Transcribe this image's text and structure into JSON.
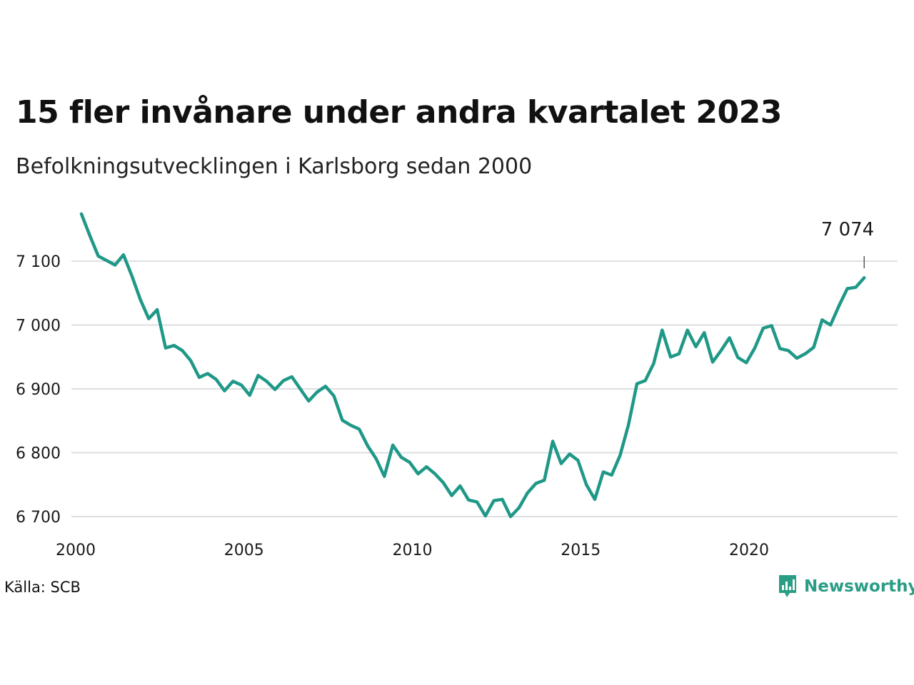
{
  "header": {
    "title": "15 fler invånare under andra kvartalet 2023",
    "subtitle": "Befolkningsutvecklingen i Karlsborg sedan 2000"
  },
  "footer": {
    "source": "Källa: SCB",
    "brand": "Newsworthy"
  },
  "colors": {
    "line": "#1f9887",
    "grid": "#dedfe3",
    "brand": "#2a9d85"
  },
  "chart_data": {
    "type": "line",
    "title": "15 fler invånare under andra kvartalet 2023",
    "subtitle": "Befolkningsutvecklingen i Karlsborg sedan 2000",
    "xlabel": "",
    "ylabel": "",
    "x_ticks": [
      "2000",
      "2005",
      "2010",
      "2015",
      "2020"
    ],
    "y_ticks": [
      "6 700",
      "6 800",
      "6 900",
      "7 000",
      "7 100"
    ],
    "y_tick_values": [
      6700,
      6800,
      6900,
      7000,
      7100
    ],
    "ylim": [
      6680,
      7185
    ],
    "xlim": [
      2000.0,
      2023.5
    ],
    "grid": true,
    "annotation": {
      "label": "7 074",
      "x": 2023.25,
      "y": 7074
    },
    "series": [
      {
        "x": [
          2000.0,
          2000.25,
          2000.5,
          2000.75,
          2001.0,
          2001.25,
          2001.5,
          2001.75,
          2002.0,
          2002.25,
          2002.5,
          2002.75,
          2003.0,
          2003.25,
          2003.5,
          2003.75,
          2004.0,
          2004.25,
          2004.5,
          2004.75,
          2005.0,
          2005.25,
          2005.5,
          2005.75,
          2006.0,
          2006.25,
          2006.5,
          2006.75,
          2007.0,
          2007.25,
          2007.5,
          2007.75,
          2008.0,
          2008.25,
          2008.5,
          2008.75,
          2009.0,
          2009.25,
          2009.5,
          2009.75,
          2010.0,
          2010.25,
          2010.5,
          2010.75,
          2011.0,
          2011.25,
          2011.5,
          2011.75,
          2012.0,
          2012.25,
          2012.5,
          2012.75,
          2013.0,
          2013.25,
          2013.5,
          2013.75,
          2014.0,
          2014.25,
          2014.5,
          2014.75,
          2015.0,
          2015.25,
          2015.5,
          2015.75,
          2016.0,
          2016.25,
          2016.5,
          2016.75,
          2017.0,
          2017.25,
          2017.5,
          2017.75,
          2018.0,
          2018.25,
          2018.5,
          2018.75,
          2019.0,
          2019.25,
          2019.5,
          2019.75,
          2020.0,
          2020.25,
          2020.5,
          2020.75,
          2021.0,
          2021.25,
          2021.5,
          2021.75,
          2022.0,
          2022.25,
          2022.5,
          2022.75,
          2023.0,
          2023.25
        ],
        "values": [
          7174,
          7140,
          7108,
          7101,
          7094,
          7110,
          7077,
          7040,
          7010,
          7024,
          6964,
          6968,
          6960,
          6944,
          6918,
          6924,
          6915,
          6897,
          6912,
          6906,
          6890,
          6921,
          6912,
          6899,
          6913,
          6919,
          6900,
          6881,
          6895,
          6904,
          6889,
          6851,
          6843,
          6837,
          6811,
          6791,
          6763,
          6812,
          6793,
          6785,
          6767,
          6778,
          6767,
          6753,
          6733,
          6748,
          6726,
          6723,
          6701,
          6725,
          6727,
          6700,
          6714,
          6737,
          6752,
          6757,
          6818,
          6783,
          6798,
          6788,
          6750,
          6727,
          6770,
          6765,
          6796,
          6844,
          6908,
          6913,
          6940,
          6992,
          6950,
          6955,
          6992,
          6966,
          6988,
          6942,
          6960,
          6980,
          6949,
          6941,
          6964,
          6995,
          6999,
          6963,
          6960,
          6948,
          6955,
          6965,
          7008,
          7000,
          7030,
          7057,
          7059,
          7074
        ]
      }
    ]
  }
}
